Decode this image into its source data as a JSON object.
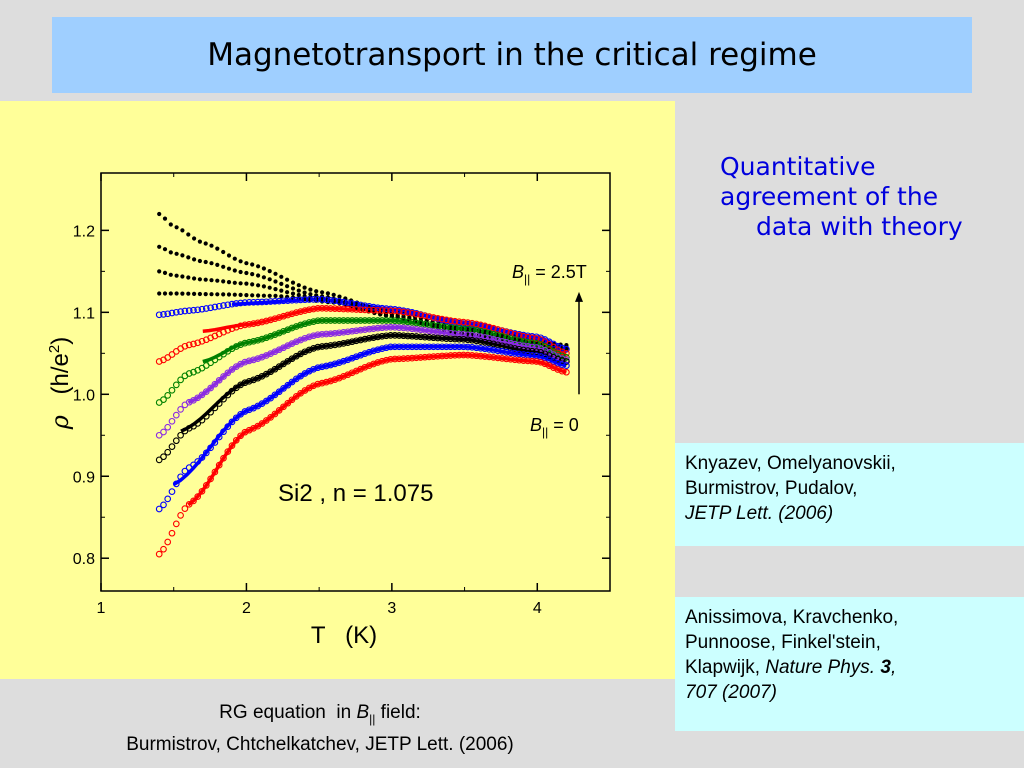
{
  "title": "Magnetotransport in the critical regime",
  "side_text": {
    "line1": "Quantitative",
    "line2": "agreement of the",
    "line3": "data with theory"
  },
  "references": {
    "ref1": {
      "line1": "Knyazev, Omelyanovskii,",
      "line2": "Burmistrov, Pudalov,",
      "journal": "JETP Lett. (2006)"
    },
    "ref2": {
      "line1": "Anissimova, Kravchenko,",
      "line2": "Punnoose, Finkel'stein,",
      "line3_prefix": "Klapwijk, ",
      "journal": "Nature Phys. ",
      "volume": "3",
      "comma": ",",
      "pages": "707 (2007)"
    }
  },
  "footer": {
    "line1_prefix": "RG equation  in ",
    "line1_b": "B",
    "line1_sub": "||",
    "line1_suffix": " field:",
    "line2": "Burmistrov, Chtchelkatchev, JETP Lett. (2006)"
  },
  "colors": {
    "black": "#000000",
    "blue": "#0000ff",
    "red": "#ff0000",
    "green": "#008000",
    "violet": "#8a2be2",
    "panel": "#ffff99",
    "title_bg": "#9fcfff",
    "ref_bg": "#ccffff",
    "side_text": "#0000dd"
  },
  "chart_data": {
    "type": "scatter",
    "ylabel_symbol": "ρ",
    "ylabel_unit_open": "(h/e",
    "ylabel_unit_sup": "2",
    "ylabel_unit_close": ")",
    "xlabel": "T   (K)",
    "xlim": [
      1,
      4.5
    ],
    "ylim": [
      0.76,
      1.27
    ],
    "xticks": [
      1,
      2,
      3,
      4
    ],
    "yticks": [
      0.8,
      0.9,
      1.0,
      1.1,
      1.2
    ],
    "ytick_labels": [
      "0.8",
      "0.9",
      "1.0",
      "1.1",
      "1.2"
    ],
    "xtick_labels": [
      "1",
      "2",
      "3",
      "4"
    ],
    "annotation_sample": "Si2 , n = 1.075",
    "annotation_top": {
      "b": "B",
      "sub": "||",
      "text": " = 2.5T"
    },
    "annotation_bottom": {
      "b": "B",
      "sub": "||",
      "text": " = 0"
    },
    "series": [
      {
        "color": "black",
        "marker": "filled",
        "points": [
          [
            1.4,
            1.22
          ],
          [
            1.5,
            1.205
          ],
          [
            1.7,
            1.185
          ],
          [
            2.0,
            1.16
          ],
          [
            2.5,
            1.125
          ],
          [
            3.0,
            1.1
          ],
          [
            3.5,
            1.08
          ],
          [
            4.2,
            1.06
          ]
        ]
      },
      {
        "color": "black",
        "marker": "filled",
        "points": [
          [
            1.4,
            1.18
          ],
          [
            1.5,
            1.172
          ],
          [
            1.7,
            1.162
          ],
          [
            2.0,
            1.148
          ],
          [
            2.5,
            1.12
          ],
          [
            3.0,
            1.097
          ],
          [
            3.5,
            1.077
          ],
          [
            4.2,
            1.058
          ]
        ]
      },
      {
        "color": "black",
        "marker": "filled",
        "points": [
          [
            1.4,
            1.15
          ],
          [
            1.5,
            1.145
          ],
          [
            1.7,
            1.14
          ],
          [
            2.0,
            1.135
          ],
          [
            2.5,
            1.117
          ],
          [
            3.0,
            1.095
          ],
          [
            3.5,
            1.075
          ],
          [
            4.2,
            1.056
          ]
        ]
      },
      {
        "color": "black",
        "marker": "filled",
        "points": [
          [
            1.4,
            1.123
          ],
          [
            1.5,
            1.123
          ],
          [
            1.8,
            1.122
          ],
          [
            2.2,
            1.12
          ],
          [
            2.6,
            1.112
          ],
          [
            3.0,
            1.095
          ],
          [
            3.5,
            1.074
          ],
          [
            4.2,
            1.055
          ]
        ]
      },
      {
        "color": "blue",
        "marker": "open",
        "points": [
          [
            1.4,
            1.097
          ],
          [
            1.6,
            1.102
          ],
          [
            2.0,
            1.112
          ],
          [
            2.5,
            1.116
          ],
          [
            3.0,
            1.104
          ],
          [
            3.5,
            1.086
          ],
          [
            4.0,
            1.07
          ],
          [
            4.2,
            1.055
          ]
        ]
      },
      {
        "color": "red",
        "marker": "open",
        "points": [
          [
            1.4,
            1.04
          ],
          [
            1.6,
            1.06
          ],
          [
            2.0,
            1.085
          ],
          [
            2.5,
            1.105
          ],
          [
            3.0,
            1.102
          ],
          [
            3.5,
            1.088
          ],
          [
            4.0,
            1.068
          ],
          [
            4.2,
            1.05
          ]
        ]
      },
      {
        "color": "green",
        "marker": "open",
        "points": [
          [
            1.4,
            0.99
          ],
          [
            1.6,
            1.025
          ],
          [
            2.0,
            1.063
          ],
          [
            2.5,
            1.09
          ],
          [
            3.0,
            1.09
          ],
          [
            3.5,
            1.08
          ],
          [
            4.0,
            1.062
          ],
          [
            4.2,
            1.045
          ]
        ]
      },
      {
        "color": "violet",
        "marker": "open",
        "points": [
          [
            1.4,
            0.95
          ],
          [
            1.6,
            0.99
          ],
          [
            2.0,
            1.04
          ],
          [
            2.5,
            1.073
          ],
          [
            3.0,
            1.082
          ],
          [
            3.5,
            1.073
          ],
          [
            4.0,
            1.057
          ],
          [
            4.2,
            1.042
          ]
        ]
      },
      {
        "color": "black",
        "marker": "open",
        "points": [
          [
            1.4,
            0.92
          ],
          [
            1.6,
            0.958
          ],
          [
            2.0,
            1.015
          ],
          [
            2.5,
            1.058
          ],
          [
            3.0,
            1.072
          ],
          [
            3.5,
            1.067
          ],
          [
            4.0,
            1.052
          ],
          [
            4.2,
            1.04
          ]
        ]
      },
      {
        "color": "blue",
        "marker": "open",
        "points": [
          [
            1.4,
            0.86
          ],
          [
            1.6,
            0.91
          ],
          [
            2.0,
            0.98
          ],
          [
            2.5,
            1.033
          ],
          [
            3.0,
            1.058
          ],
          [
            3.5,
            1.058
          ],
          [
            4.0,
            1.047
          ],
          [
            4.2,
            1.035
          ]
        ]
      },
      {
        "color": "red",
        "marker": "open",
        "points": [
          [
            1.4,
            0.805
          ],
          [
            1.6,
            0.865
          ],
          [
            2.0,
            0.955
          ],
          [
            2.5,
            1.013
          ],
          [
            3.0,
            1.043
          ],
          [
            3.5,
            1.048
          ],
          [
            4.0,
            1.04
          ],
          [
            4.2,
            1.027
          ]
        ]
      }
    ],
    "theory_lines": [
      {
        "color": "black",
        "points": [
          [
            1.55,
            0.955
          ],
          [
            2.0,
            1.015
          ],
          [
            2.5,
            1.058
          ],
          [
            3.0,
            1.072
          ],
          [
            3.5,
            1.067
          ],
          [
            4.0,
            1.052
          ],
          [
            4.2,
            1.04
          ]
        ]
      },
      {
        "color": "blue",
        "points": [
          [
            1.5,
            0.89
          ],
          [
            2.0,
            0.98
          ],
          [
            2.5,
            1.033
          ],
          [
            3.0,
            1.058
          ],
          [
            3.5,
            1.058
          ],
          [
            4.0,
            1.047
          ],
          [
            4.2,
            1.035
          ]
        ]
      },
      {
        "color": "red",
        "points": [
          [
            1.6,
            0.865
          ],
          [
            2.0,
            0.955
          ],
          [
            2.5,
            1.013
          ],
          [
            3.0,
            1.043
          ],
          [
            3.5,
            1.048
          ],
          [
            4.0,
            1.04
          ],
          [
            4.2,
            1.027
          ]
        ]
      },
      {
        "color": "violet",
        "points": [
          [
            1.6,
            0.99
          ],
          [
            2.0,
            1.04
          ],
          [
            2.5,
            1.073
          ],
          [
            3.0,
            1.082
          ],
          [
            3.5,
            1.073
          ],
          [
            4.0,
            1.057
          ],
          [
            4.2,
            1.042
          ]
        ]
      },
      {
        "color": "green",
        "points": [
          [
            1.7,
            1.04
          ],
          [
            2.0,
            1.063
          ],
          [
            2.5,
            1.09
          ],
          [
            3.0,
            1.09
          ],
          [
            3.5,
            1.08
          ],
          [
            4.0,
            1.062
          ],
          [
            4.2,
            1.045
          ]
        ]
      },
      {
        "color": "red",
        "points": [
          [
            1.7,
            1.077
          ],
          [
            2.0,
            1.085
          ],
          [
            2.5,
            1.105
          ],
          [
            3.0,
            1.102
          ],
          [
            3.5,
            1.088
          ],
          [
            4.0,
            1.068
          ],
          [
            4.2,
            1.05
          ]
        ]
      },
      {
        "color": "blue",
        "points": [
          [
            1.9,
            1.11
          ],
          [
            2.5,
            1.116
          ],
          [
            3.0,
            1.104
          ],
          [
            3.5,
            1.086
          ],
          [
            4.0,
            1.07
          ],
          [
            4.2,
            1.055
          ]
        ]
      }
    ],
    "arrow": {
      "from_y": 1.0,
      "to_y": 1.125
    }
  }
}
